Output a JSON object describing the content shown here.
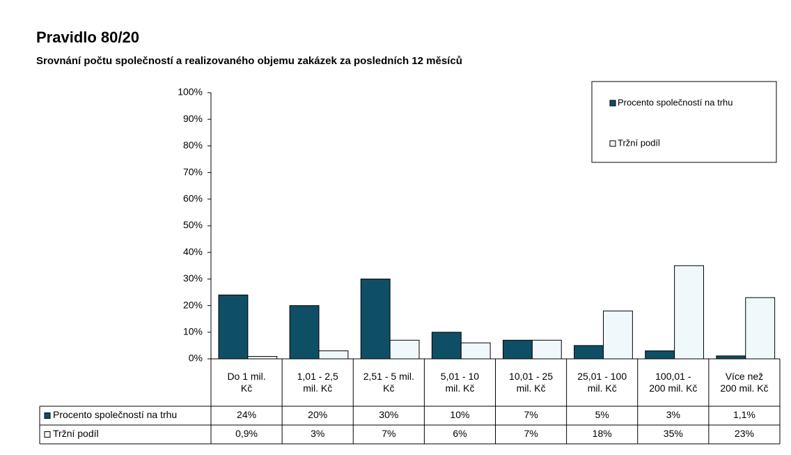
{
  "chart_data": {
    "type": "bar",
    "title": "Pravidlo 80/20",
    "subtitle": "Srovnání počtu společností a realizovaného objemu zakázek za posledních 12 měsíců",
    "categories": [
      "Do 1 mil. Kč",
      "1,01 - 2,5 mil. Kč",
      "2,51 - 5 mil. Kč",
      "5,01 - 10 mil. Kč",
      "10,01 - 25 mil. Kč",
      "25,01 - 100 mil. Kč",
      "100,01 - 200 mil. Kč",
      "Více než 200 mil. Kč"
    ],
    "series": [
      {
        "name": "Procento společností na trhu",
        "color": "#0e4f66",
        "values": [
          24,
          20,
          30,
          10,
          7,
          5,
          3,
          1.1
        ],
        "value_labels": [
          "24%",
          "20%",
          "30%",
          "10%",
          "7%",
          "5%",
          "3%",
          "1,1%"
        ]
      },
      {
        "name": "Tržní podíl",
        "color": "#f0f8fc",
        "values": [
          0.9,
          3,
          7,
          6,
          7,
          18,
          35,
          23
        ],
        "value_labels": [
          "0,9%",
          "3%",
          "7%",
          "6%",
          "7%",
          "18%",
          "35%",
          "23%"
        ]
      }
    ],
    "ylim": [
      0,
      100
    ],
    "yticks": [
      {
        "value": 0,
        "label": "0%"
      },
      {
        "value": 10,
        "label": "10%"
      },
      {
        "value": 20,
        "label": "20%"
      },
      {
        "value": 30,
        "label": "30%"
      },
      {
        "value": 40,
        "label": "40%"
      },
      {
        "value": 50,
        "label": "50%"
      },
      {
        "value": 60,
        "label": "60%"
      },
      {
        "value": 70,
        "label": "70%"
      },
      {
        "value": 80,
        "label": "80%"
      },
      {
        "value": 90,
        "label": "90%"
      },
      {
        "value": 100,
        "label": "100%"
      }
    ],
    "legend": "top-right"
  }
}
